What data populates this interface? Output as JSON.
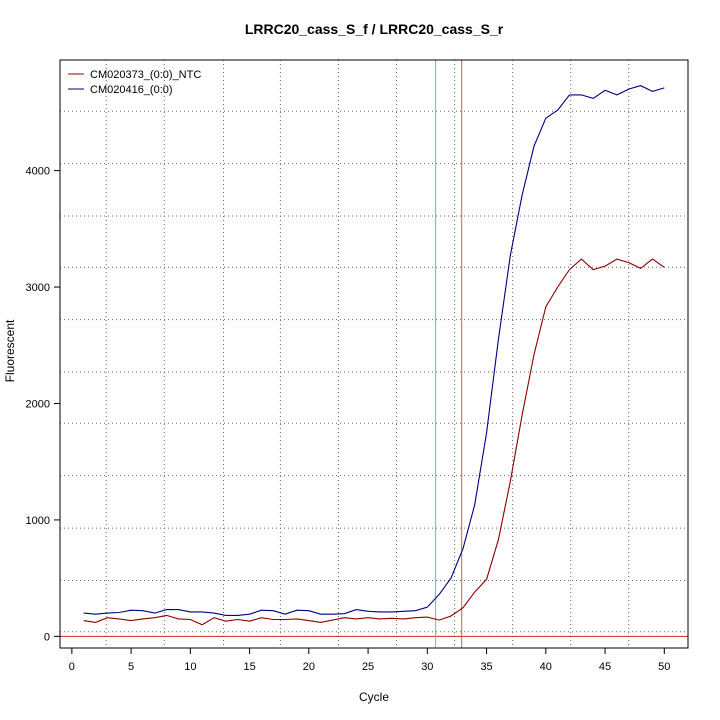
{
  "chart_data": {
    "type": "line",
    "title": "LRRC20_cass_S_f / LRRC20_cass_S_r",
    "xlabel": "Cycle",
    "ylabel": "Fluorescent",
    "xlim": [
      -1,
      52
    ],
    "ylim": [
      -100,
      4950
    ],
    "x_ticks": [
      0,
      5,
      10,
      15,
      20,
      25,
      30,
      35,
      40,
      45,
      50
    ],
    "y_ticks": [
      0,
      1000,
      2000,
      3000,
      4000
    ],
    "x_grid": [
      2.9,
      7.8,
      12.8,
      17.6,
      22.5,
      27.4,
      32.3,
      37.2,
      42.1,
      47.0
    ],
    "y_grid": [
      40,
      480,
      930,
      1380,
      1830,
      2270,
      2720,
      3170,
      3610,
      4060,
      4510
    ],
    "grid": true,
    "legend_position": "top-left",
    "series": [
      {
        "name": "CM020373_(0:0)_NTC",
        "color": "#8b0000",
        "x": [
          1,
          2,
          3,
          4,
          5,
          6,
          7,
          8,
          9,
          10,
          11,
          12,
          13,
          14,
          15,
          16,
          17,
          18,
          19,
          20,
          21,
          22,
          23,
          24,
          25,
          26,
          27,
          28,
          29,
          30,
          31,
          32,
          33,
          34,
          35,
          36,
          37,
          38,
          39,
          40,
          41,
          42,
          43,
          44,
          45,
          46,
          47,
          48,
          49,
          50
        ],
        "values": [
          135,
          120,
          160,
          150,
          135,
          150,
          160,
          180,
          150,
          145,
          100,
          160,
          130,
          145,
          130,
          160,
          145,
          145,
          150,
          135,
          120,
          140,
          160,
          150,
          160,
          150,
          155,
          150,
          160,
          165,
          140,
          175,
          245,
          380,
          490,
          830,
          1330,
          1900,
          2420,
          2830,
          3000,
          3150,
          3240,
          3150,
          3180,
          3240,
          3210,
          3160,
          3240,
          3170
        ]
      },
      {
        "name": "CM020416_(0:0)",
        "color": "#000080",
        "x": [
          1,
          2,
          3,
          4,
          5,
          6,
          7,
          8,
          9,
          10,
          11,
          12,
          13,
          14,
          15,
          16,
          17,
          18,
          19,
          20,
          21,
          22,
          23,
          24,
          25,
          26,
          27,
          28,
          29,
          30,
          31,
          32,
          33,
          34,
          35,
          36,
          37,
          38,
          39,
          40,
          41,
          42,
          43,
          44,
          45,
          46,
          47,
          48,
          49,
          50
        ],
        "values": [
          200,
          190,
          200,
          205,
          225,
          220,
          200,
          230,
          230,
          210,
          210,
          200,
          180,
          180,
          190,
          225,
          220,
          190,
          225,
          220,
          190,
          190,
          195,
          230,
          215,
          210,
          210,
          215,
          220,
          250,
          360,
          500,
          750,
          1130,
          1750,
          2550,
          3270,
          3790,
          4210,
          4450,
          4520,
          4650,
          4650,
          4620,
          4690,
          4650,
          4700,
          4730,
          4680,
          4710
        ]
      }
    ],
    "vlines": [
      {
        "x": 30.7,
        "color": "#00e5ee"
      },
      {
        "x": 32.9,
        "color": "#cd5c5c"
      }
    ],
    "hlines": [
      {
        "y": 0,
        "color": "#cd2626"
      }
    ]
  }
}
